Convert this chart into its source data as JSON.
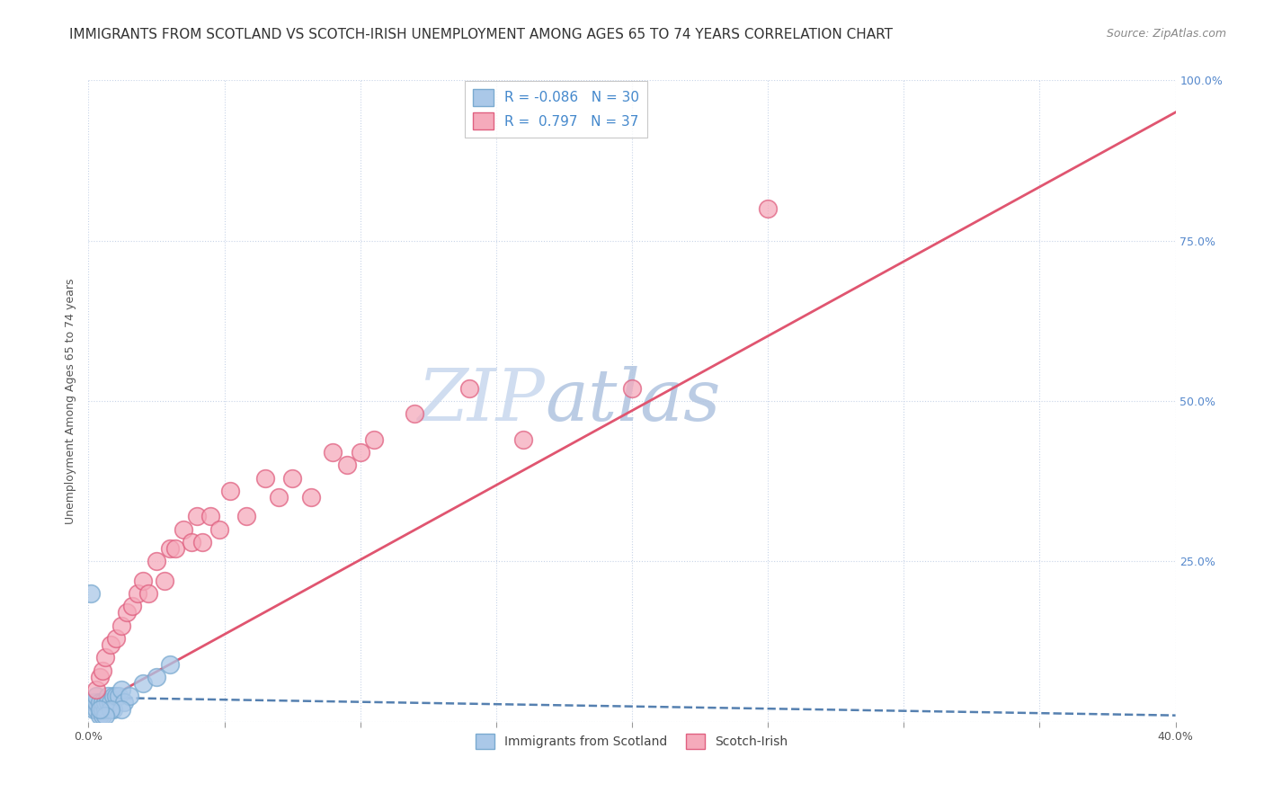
{
  "title": "IMMIGRANTS FROM SCOTLAND VS SCOTCH-IRISH UNEMPLOYMENT AMONG AGES 65 TO 74 YEARS CORRELATION CHART",
  "source": "Source: ZipAtlas.com",
  "ylabel": "Unemployment Among Ages 65 to 74 years",
  "xlim": [
    0.0,
    0.4
  ],
  "ylim": [
    0.0,
    1.0
  ],
  "xticks": [
    0.0,
    0.05,
    0.1,
    0.15,
    0.2,
    0.25,
    0.3,
    0.35,
    0.4
  ],
  "yticks": [
    0.0,
    0.25,
    0.5,
    0.75,
    1.0
  ],
  "xtick_labels": [
    "0.0%",
    "",
    "",
    "",
    "",
    "",
    "",
    "",
    "40.0%"
  ],
  "ytick_labels_right": [
    "",
    "25.0%",
    "50.0%",
    "75.0%",
    "100.0%"
  ],
  "scotland_R": -0.086,
  "scotland_N": 30,
  "scotchirish_R": 0.797,
  "scotchirish_N": 37,
  "scotland_color": "#aac8e8",
  "scotchirish_color": "#f5aabb",
  "scotland_edge_color": "#7aaad0",
  "scotchirish_edge_color": "#e06080",
  "scotland_line_color": "#5580b0",
  "scotchirish_line_color": "#e05570",
  "background_color": "#ffffff",
  "grid_color": "#c8d4e8",
  "watermark_color_zip": "#c0d0e8",
  "watermark_color_atlas": "#b0c8e0",
  "scotland_x": [
    0.001,
    0.002,
    0.002,
    0.003,
    0.003,
    0.003,
    0.004,
    0.004,
    0.005,
    0.005,
    0.005,
    0.006,
    0.006,
    0.007,
    0.007,
    0.008,
    0.009,
    0.009,
    0.01,
    0.011,
    0.012,
    0.013,
    0.015,
    0.02,
    0.025,
    0.03,
    0.012,
    0.008,
    0.006,
    0.004
  ],
  "scotland_y": [
    0.2,
    0.02,
    0.03,
    0.02,
    0.03,
    0.04,
    0.01,
    0.03,
    0.01,
    0.02,
    0.03,
    0.02,
    0.03,
    0.04,
    0.03,
    0.03,
    0.04,
    0.02,
    0.04,
    0.04,
    0.05,
    0.03,
    0.04,
    0.06,
    0.07,
    0.09,
    0.02,
    0.02,
    0.01,
    0.02
  ],
  "scotchirish_x": [
    0.003,
    0.004,
    0.005,
    0.006,
    0.008,
    0.01,
    0.012,
    0.014,
    0.016,
    0.018,
    0.02,
    0.022,
    0.025,
    0.028,
    0.03,
    0.032,
    0.035,
    0.038,
    0.04,
    0.042,
    0.045,
    0.048,
    0.052,
    0.058,
    0.065,
    0.07,
    0.075,
    0.082,
    0.09,
    0.095,
    0.1,
    0.105,
    0.12,
    0.14,
    0.16,
    0.2,
    0.25
  ],
  "scotchirish_y": [
    0.05,
    0.07,
    0.08,
    0.1,
    0.12,
    0.13,
    0.15,
    0.17,
    0.18,
    0.2,
    0.22,
    0.2,
    0.25,
    0.22,
    0.27,
    0.27,
    0.3,
    0.28,
    0.32,
    0.28,
    0.32,
    0.3,
    0.36,
    0.32,
    0.38,
    0.35,
    0.38,
    0.35,
    0.42,
    0.4,
    0.42,
    0.44,
    0.48,
    0.52,
    0.44,
    0.52,
    0.8
  ],
  "legend_scotland_label": "Immigrants from Scotland",
  "legend_scotchirish_label": "Scotch-Irish",
  "title_fontsize": 11,
  "axis_label_fontsize": 9,
  "tick_fontsize": 9,
  "legend_fontsize": 11
}
